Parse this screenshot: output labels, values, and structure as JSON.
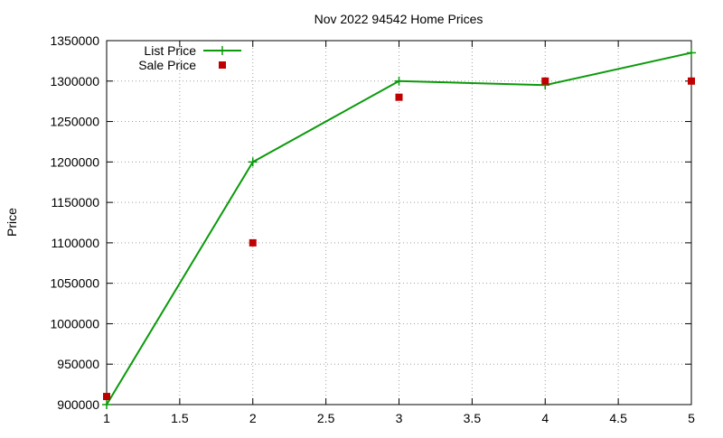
{
  "chart_data": {
    "type": "line",
    "title": "Nov 2022 94542 Home Prices",
    "xlabel": "",
    "ylabel": "Price",
    "xlim": [
      1,
      5
    ],
    "ylim": [
      900000,
      1350000
    ],
    "x_ticks": [
      "1",
      "1.5",
      "2",
      "2.5",
      "3",
      "3.5",
      "4",
      "4.5",
      "5"
    ],
    "y_ticks": [
      "900000",
      "950000",
      "1000000",
      "1050000",
      "1100000",
      "1150000",
      "1200000",
      "1250000",
      "1300000",
      "1350000"
    ],
    "grid": true,
    "grid_style": "dotted",
    "legend_position": "top-left",
    "series": [
      {
        "name": "List Price",
        "style": "line+marker",
        "marker": "plus",
        "color": "#0a9a0a",
        "x": [
          1,
          2,
          3,
          4,
          5
        ],
        "y": [
          900000,
          1200000,
          1300000,
          1295000,
          1335000
        ]
      },
      {
        "name": "Sale Price",
        "style": "marker",
        "marker": "square",
        "color": "#c00000",
        "x": [
          1,
          2,
          3,
          4,
          5
        ],
        "y": [
          910000,
          1100000,
          1280000,
          1300000,
          1300000
        ]
      }
    ]
  }
}
